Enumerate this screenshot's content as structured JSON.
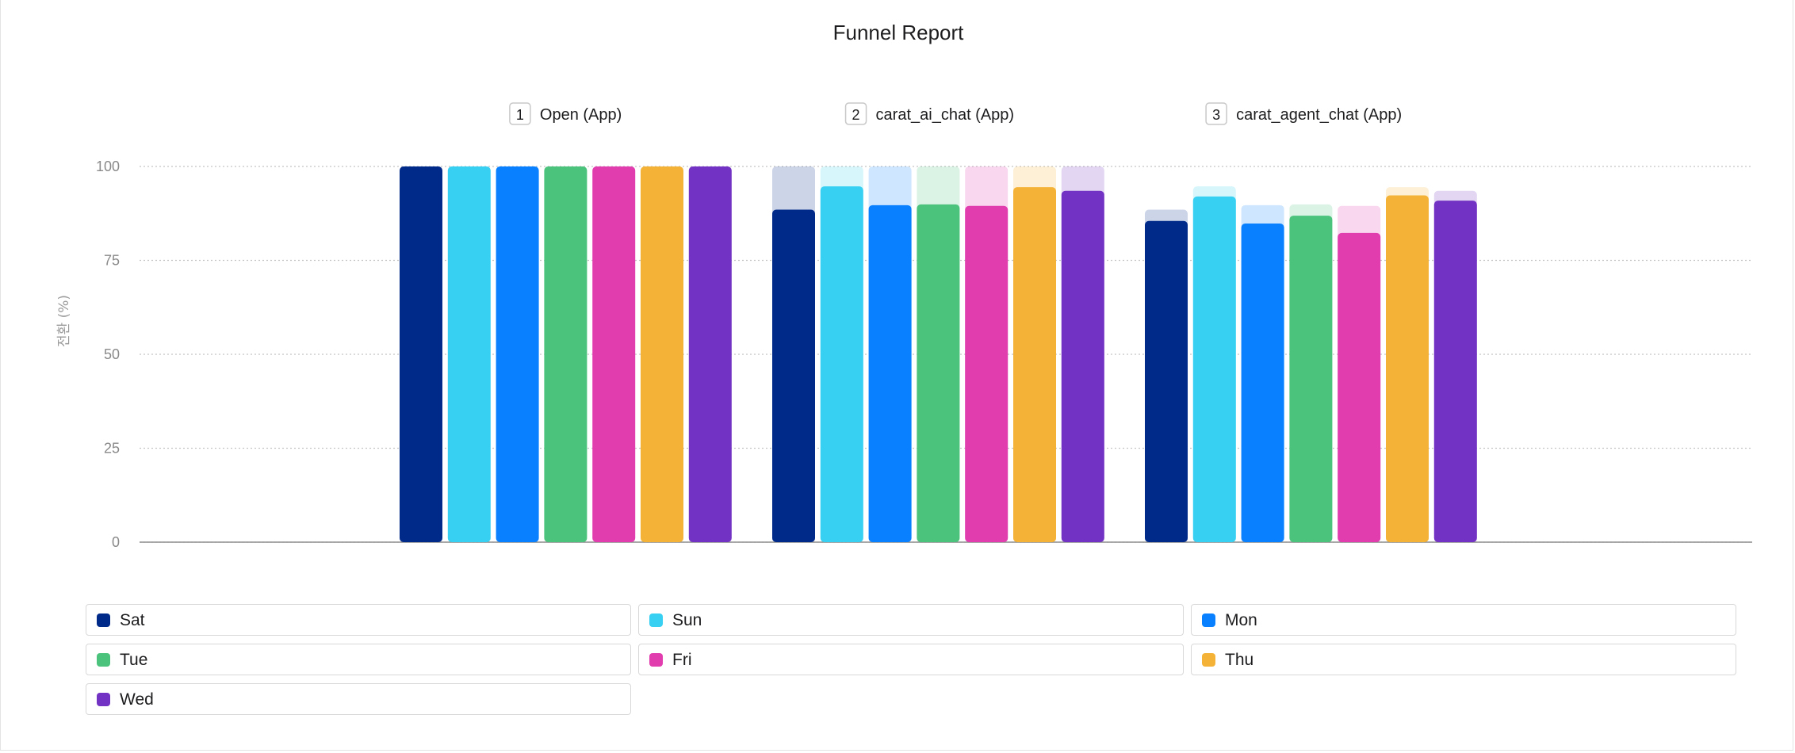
{
  "chart_data": {
    "type": "bar",
    "title": "Funnel Report",
    "ylabel": "전환 (%)",
    "ylim": [
      0,
      100
    ],
    "y_ticks": [
      0,
      25,
      50,
      75,
      100
    ],
    "grid": true,
    "legend_position": "bottom",
    "steps": [
      {
        "number": "1",
        "name": "Open (App)"
      },
      {
        "number": "2",
        "name": "carat_ai_chat (App)"
      },
      {
        "number": "3",
        "name": "carat_agent_chat (App)"
      }
    ],
    "series": [
      {
        "name": "Sat",
        "color": "#002a8a",
        "values": [
          100,
          88.5,
          85.5
        ],
        "ghost": [
          100,
          100,
          88.5
        ]
      },
      {
        "name": "Sun",
        "color": "#38d0f2",
        "values": [
          100,
          94.7,
          92
        ],
        "ghost": [
          100,
          100,
          94.7
        ]
      },
      {
        "name": "Mon",
        "color": "#0880ff",
        "values": [
          100,
          89.7,
          84.8
        ],
        "ghost": [
          100,
          100,
          89.7
        ]
      },
      {
        "name": "Tue",
        "color": "#4bc37c",
        "values": [
          100,
          89.9,
          86.9
        ],
        "ghost": [
          100,
          100,
          89.9
        ]
      },
      {
        "name": "Fri",
        "color": "#e23dae",
        "values": [
          100,
          89.5,
          82.3
        ],
        "ghost": [
          100,
          100,
          89.5
        ]
      },
      {
        "name": "Thu",
        "color": "#f4b337",
        "values": [
          100,
          94.5,
          92.3
        ],
        "ghost": [
          100,
          100,
          94.5
        ]
      },
      {
        "name": "Wed",
        "color": "#7232c3",
        "values": [
          100,
          93.5,
          90.9
        ],
        "ghost": [
          100,
          100,
          93.5
        ]
      }
    ]
  }
}
